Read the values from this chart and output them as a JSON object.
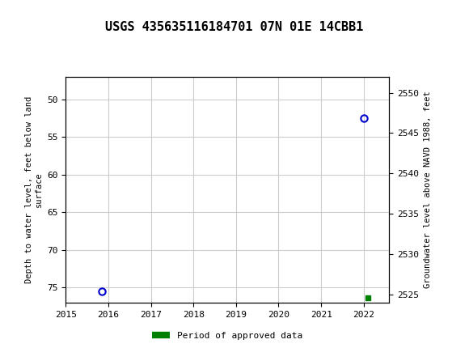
{
  "title": "USGS 435635116184701 07N 01E 14CBB1",
  "header_color": "#006633",
  "ylabel_left": "Depth to water level, feet below land\nsurface",
  "ylabel_right": "Groundwater level above NAVD 1988, feet",
  "xlim": [
    2015,
    2022.6
  ],
  "ylim_left_top": 47,
  "ylim_left_bottom": 77,
  "ylim_right_top": 2552,
  "ylim_right_bottom": 2524,
  "xticks": [
    2015,
    2016,
    2017,
    2018,
    2019,
    2020,
    2021,
    2022
  ],
  "yticks_left": [
    50,
    55,
    60,
    65,
    70,
    75
  ],
  "yticks_right": [
    2550,
    2545,
    2540,
    2535,
    2530,
    2525
  ],
  "grid_color": "#cccccc",
  "data_points": [
    {
      "x": 2015.85,
      "y_left": 75.5,
      "color": "#0000cc"
    },
    {
      "x": 2022.0,
      "y_left": 52.5,
      "color": "#0000cc"
    }
  ],
  "approved_marker": {
    "x": 2022.1,
    "y_left": 76.3,
    "color": "#008000"
  },
  "legend_label": "Period of approved data",
  "legend_color": "#008000",
  "background_color": "#ffffff",
  "title_fontsize": 11,
  "tick_fontsize": 8,
  "ylabel_fontsize": 7.5,
  "monospace_font": "DejaVu Sans Mono"
}
